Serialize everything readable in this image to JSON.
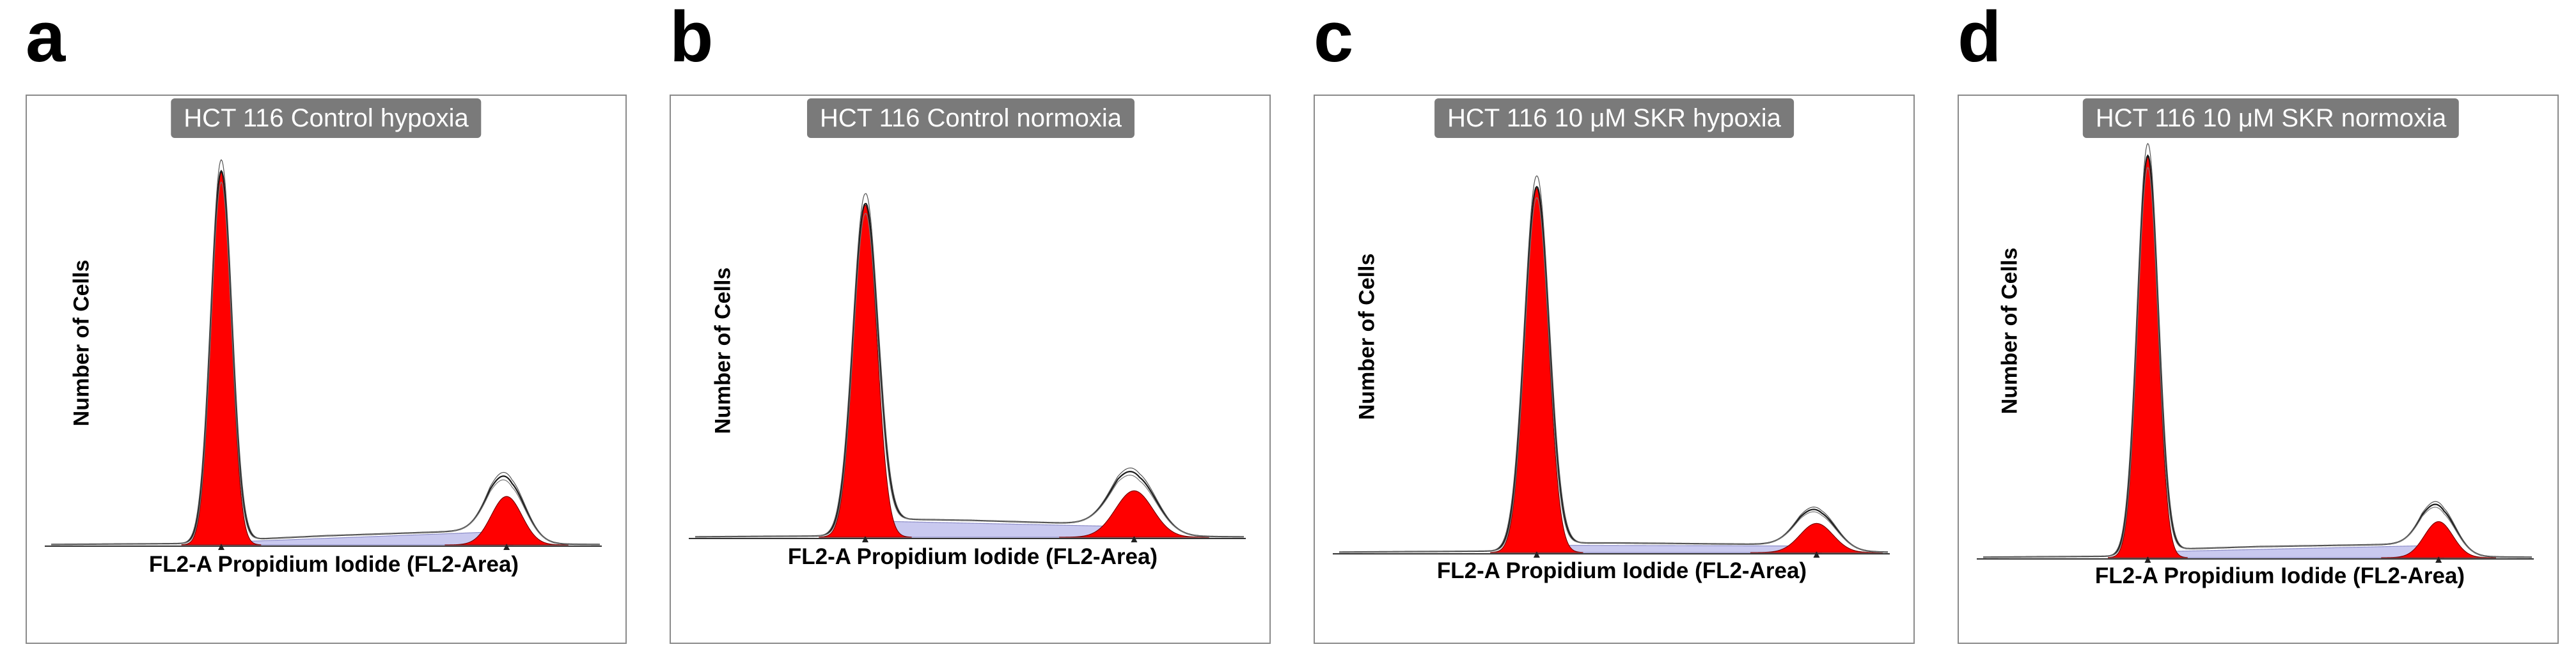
{
  "figure": {
    "description_note": "Four flow-cytometry DNA content histograms"
  },
  "colors": {
    "g1_fill": "#ff0000",
    "s_phase_fill": "#c9c9ef",
    "outline": "#1a1a1a",
    "frame": "#8a8a8a",
    "title_badge_bg": "#7a7a7a"
  },
  "panels": [
    {
      "letter": "a",
      "title": "HCT 116 Control hypoxia",
      "xlabel": "FL2-A Propidium Iodide (FL2-Area)",
      "ylabel": "Number of Cells"
    },
    {
      "letter": "b",
      "title": "HCT 116 Control normoxia",
      "xlabel": "FL2-A Propidium Iodide (FL2-Area)",
      "ylabel": "Number of Cells"
    },
    {
      "letter": "c",
      "title": "HCT 116 10 μM SKR hypoxia",
      "xlabel": "FL2-A Propidium Iodide (FL2-Area)",
      "ylabel": "Number of Cells"
    },
    {
      "letter": "d",
      "title": "HCT 116 10 μM SKR normoxia",
      "xlabel": "FL2-A Propidium Iodide (FL2-Area)",
      "ylabel": "Number of Cells"
    }
  ],
  "chart_data": [
    {
      "type": "area",
      "title": "HCT 116 Control hypoxia",
      "xlabel": "FL2-A Propidium Iodide (FL2-Area)",
      "ylabel": "Number of Cells",
      "xlim": [
        0,
        1
      ],
      "ylim": [
        0,
        1
      ],
      "grid": false,
      "series": [
        {
          "name": "G1 peak",
          "center": 0.31,
          "width": 0.018,
          "height": 1.0
        },
        {
          "name": "G2/M peak",
          "center": 0.83,
          "width": 0.028,
          "height": 0.13
        },
        {
          "name": "S phase",
          "start": 0.33,
          "end": 0.81,
          "level_start": 0.008,
          "level_end": 0.035
        },
        {
          "name": "Total fit",
          "g2_height": 0.17
        }
      ]
    },
    {
      "type": "area",
      "title": "HCT 116 Control normoxia",
      "xlabel": "FL2-A Propidium Iodide (FL2-Area)",
      "ylabel": "Number of Cells",
      "xlim": [
        0,
        1
      ],
      "ylim": [
        0,
        1
      ],
      "grid": false,
      "series": [
        {
          "name": "G1 peak",
          "center": 0.31,
          "width": 0.021,
          "height": 0.93
        },
        {
          "name": "G2/M peak",
          "center": 0.8,
          "width": 0.034,
          "height": 0.13
        },
        {
          "name": "S phase",
          "start": 0.33,
          "end": 0.78,
          "level_start": 0.045,
          "level_end": 0.03
        },
        {
          "name": "Total fit",
          "g2_height": 0.17
        }
      ]
    },
    {
      "type": "area",
      "title": "HCT 116 10 μM SKR hypoxia",
      "xlabel": "FL2-A Propidium Iodide (FL2-Area)",
      "ylabel": "Number of Cells",
      "xlim": [
        0,
        1
      ],
      "ylim": [
        0,
        1
      ],
      "grid": false,
      "series": [
        {
          "name": "G1 peak",
          "center": 0.36,
          "width": 0.021,
          "height": 1.0
        },
        {
          "name": "G2/M peak",
          "center": 0.87,
          "width": 0.03,
          "height": 0.08
        },
        {
          "name": "S phase",
          "start": 0.38,
          "end": 0.85,
          "level_start": 0.02,
          "level_end": 0.018
        },
        {
          "name": "Total fit",
          "g2_height": 0.11
        }
      ]
    },
    {
      "type": "area",
      "title": "HCT 116 10 μM SKR normoxia",
      "xlabel": "FL2-A Propidium Iodide (FL2-Area)",
      "ylabel": "Number of Cells",
      "xlim": [
        0,
        1
      ],
      "ylim": [
        0,
        1
      ],
      "grid": false,
      "series": [
        {
          "name": "G1 peak",
          "center": 0.3,
          "width": 0.018,
          "height": 1.0
        },
        {
          "name": "G2/M peak",
          "center": 0.83,
          "width": 0.026,
          "height": 0.09
        },
        {
          "name": "S phase",
          "start": 0.32,
          "end": 0.81,
          "level_start": 0.015,
          "level_end": 0.03
        },
        {
          "name": "Total fit",
          "g2_height": 0.12
        }
      ]
    }
  ]
}
